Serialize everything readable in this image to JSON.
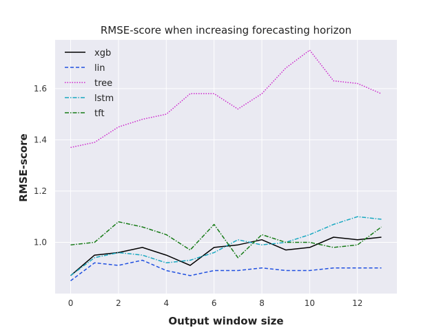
{
  "chart_data": {
    "type": "line",
    "title": "RMSE-score when increasing forecasting horizon",
    "xlabel": "Output window size",
    "ylabel": "RMSE-score",
    "x": [
      0,
      1,
      2,
      3,
      4,
      5,
      6,
      7,
      8,
      9,
      10,
      11,
      12,
      13
    ],
    "xlim": [
      -0.65,
      13.65
    ],
    "ylim": [
      0.8,
      1.79
    ],
    "xticks": [
      "0",
      "2",
      "4",
      "6",
      "8",
      "10",
      "12"
    ],
    "yticks": [
      "1.0",
      "1.2",
      "1.4",
      "1.6"
    ],
    "grid": true,
    "legend_position": "top-left",
    "series": [
      {
        "name": "xgb",
        "color": "#000000",
        "dash": "solid",
        "values": [
          0.87,
          0.95,
          0.96,
          0.98,
          0.95,
          0.91,
          0.98,
          0.99,
          1.01,
          0.97,
          0.98,
          1.02,
          1.01,
          1.02
        ]
      },
      {
        "name": "lin",
        "color": "#1f4fe0",
        "dash": "dashed",
        "values": [
          0.85,
          0.92,
          0.91,
          0.93,
          0.89,
          0.87,
          0.89,
          0.89,
          0.9,
          0.89,
          0.89,
          0.9,
          0.9,
          0.9
        ]
      },
      {
        "name": "tree",
        "color": "#cc22cc",
        "dash": "dotted",
        "values": [
          1.37,
          1.39,
          1.45,
          1.48,
          1.5,
          1.58,
          1.58,
          1.52,
          1.58,
          1.68,
          1.75,
          1.63,
          1.62,
          1.58
        ]
      },
      {
        "name": "lstm",
        "color": "#17a8c0",
        "dash": "dashdot",
        "values": [
          0.87,
          0.94,
          0.96,
          0.95,
          0.92,
          0.93,
          0.96,
          1.01,
          0.99,
          1.0,
          1.03,
          1.07,
          1.1,
          1.09
        ]
      },
      {
        "name": "tft",
        "color": "#157a15",
        "dash": "dashdot",
        "values": [
          0.99,
          1.0,
          1.08,
          1.06,
          1.03,
          0.97,
          1.07,
          0.94,
          1.03,
          1.0,
          1.0,
          0.98,
          0.99,
          1.06
        ]
      }
    ]
  }
}
